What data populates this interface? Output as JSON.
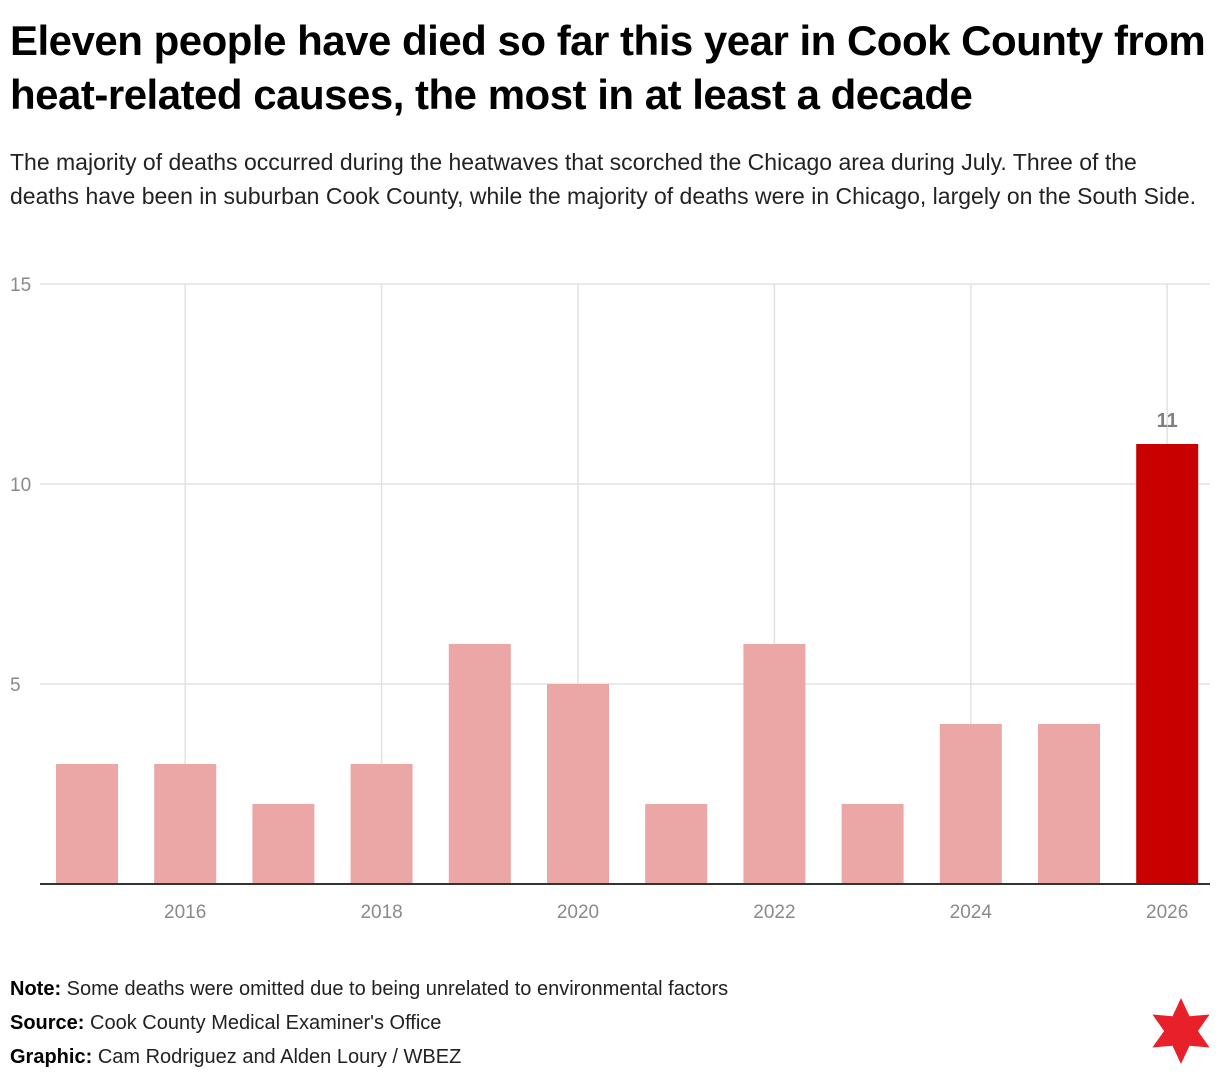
{
  "title": "Eleven people have died so far this year in Cook County from heat-related causes, the most in at least a decade",
  "subtitle": "The majority of deaths occurred during the heatwaves that scorched the Chicago area during July. Three of the deaths have been in suburban Cook County, while the majority of deaths were in Chicago, largely on the South Side.",
  "chart_data": {
    "type": "bar",
    "x": [
      2015,
      2016,
      2017,
      2018,
      2019,
      2020,
      2021,
      2022,
      2023,
      2024,
      2025,
      2026
    ],
    "values": [
      3,
      3,
      2,
      3,
      6,
      5,
      2,
      6,
      2,
      4,
      4,
      11
    ],
    "x_tick_labels": [
      "2016",
      "2018",
      "2020",
      "2022",
      "2024",
      "2026"
    ],
    "y_ticks": [
      5,
      10,
      15
    ],
    "ylim": [
      0,
      15
    ],
    "grid": true,
    "legend": "none",
    "data_labels": [
      {
        "x": 2026,
        "label": "11"
      }
    ],
    "highlight_x": 2026,
    "colors": {
      "bar": "#eba6a6",
      "highlight": "#c80000",
      "grid": "#e2e2e2",
      "axis": "#333333",
      "tick_text": "#8a8a8a",
      "value_label": "#808080"
    }
  },
  "footer": {
    "note_label": "Note:",
    "note_text": "Some deaths were omitted due to being unrelated to environmental factors",
    "source_label": "Source:",
    "source_text": "Cook County Medical Examiner's Office",
    "graphic_label": "Graphic:",
    "graphic_text": "Cam Rodriguez and Alden Loury / WBEZ"
  },
  "logo": {
    "icon": "six-pointed-star-icon",
    "color": "#e8202a"
  }
}
